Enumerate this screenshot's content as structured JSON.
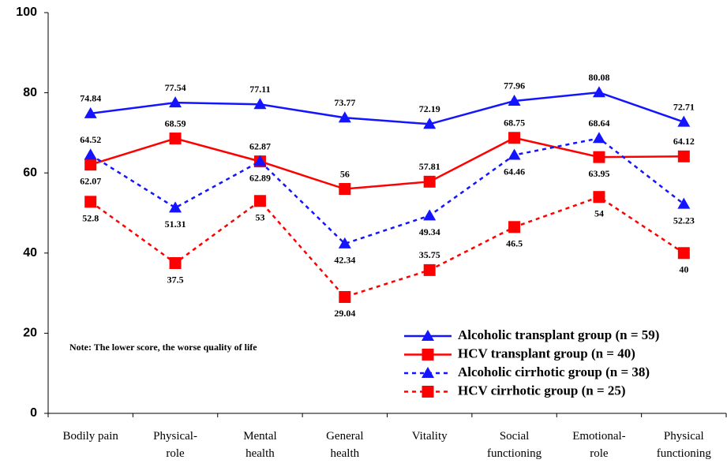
{
  "chart_data": {
    "type": "line",
    "categories": [
      "Bodily pain",
      "Physical-\nrole",
      "Mental\nhealth",
      "General\nhealth",
      "Vitality",
      "Social\nfunctioning",
      "Emotional-\nrole",
      "Physical\nfunctioning"
    ],
    "series": [
      {
        "name": "Alcoholic transplant group (n = 59)",
        "color": "#1414ff",
        "marker": "triangle",
        "dashed": false,
        "values": [
          74.84,
          77.54,
          77.11,
          73.77,
          72.19,
          77.96,
          80.08,
          72.71
        ]
      },
      {
        "name": "HCV transplant group (n = 40)",
        "color": "#ff0000",
        "marker": "square",
        "dashed": false,
        "values": [
          62.07,
          68.59,
          62.87,
          56,
          57.81,
          68.75,
          63.95,
          64.12
        ]
      },
      {
        "name": "Alcoholic cirrhotic group (n = 38)",
        "color": "#1414ff",
        "marker": "triangle",
        "dashed": true,
        "values": [
          64.52,
          51.31,
          62.89,
          42.34,
          49.34,
          64.46,
          68.64,
          52.23
        ]
      },
      {
        "name": "HCV cirrhotic group (n = 25)",
        "color": "#ff0000",
        "marker": "square",
        "dashed": true,
        "values": [
          52.8,
          37.5,
          53,
          29.04,
          35.75,
          46.5,
          54,
          40
        ]
      }
    ],
    "ylim": [
      0,
      100
    ],
    "yticks": [
      0,
      20,
      40,
      60,
      80,
      100
    ],
    "grid": false,
    "legend": "lower right",
    "annotation": "Note: The lower score, the worse quality of life"
  }
}
